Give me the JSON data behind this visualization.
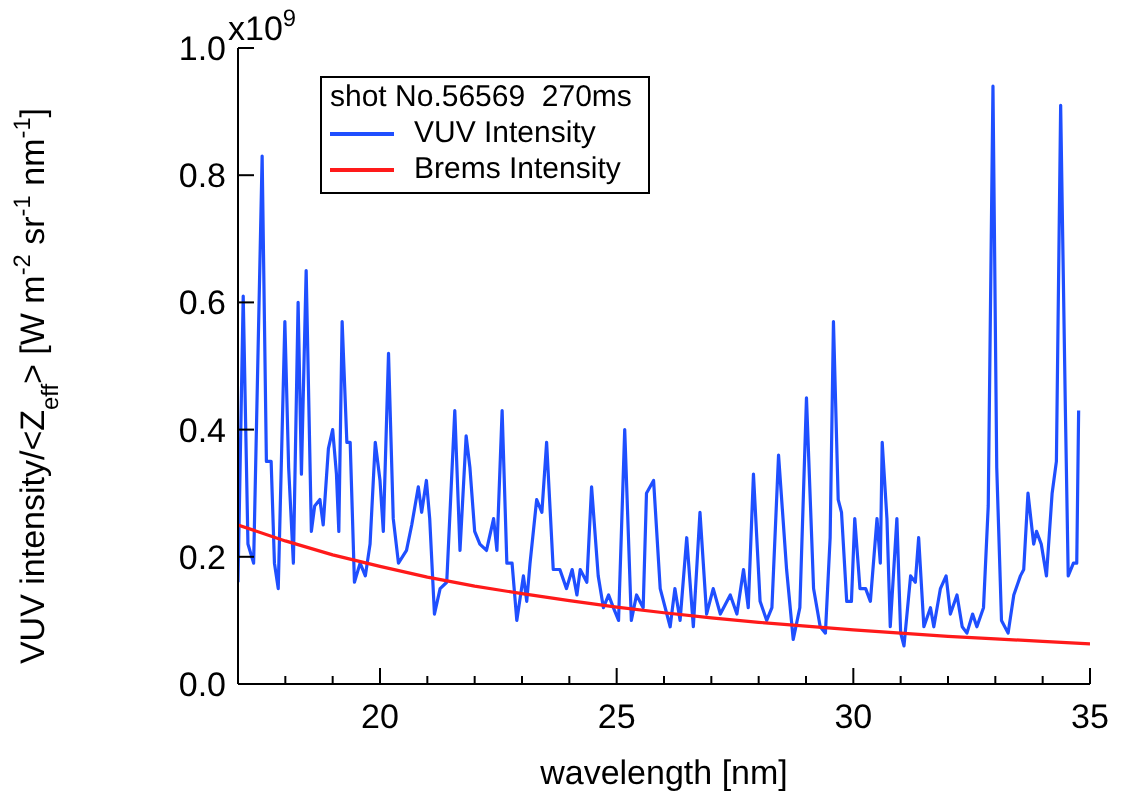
{
  "chart_data": {
    "type": "line",
    "xlabel": "wavelength [nm]",
    "ylabel": "VUV intensity/<Z$_{eff}$> [W m$^{-2}$ sr$^{-1}$ nm$^{-1}$]",
    "legend_title": "shot No.56569  270ms",
    "legend": "top left",
    "line_style": "solid",
    "xlim": [
      17,
      35
    ],
    "xticks": [
      {
        "value": 18,
        "label": null
      },
      {
        "value": 19,
        "label": null
      },
      20,
      {
        "value": 21,
        "label": null
      },
      {
        "value": 22,
        "label": null
      },
      {
        "value": 23,
        "label": null
      },
      {
        "value": 24,
        "label": null
      },
      25,
      {
        "value": 26,
        "label": null
      },
      {
        "value": 27,
        "label": null
      },
      {
        "value": 28,
        "label": null
      },
      {
        "value": 29,
        "label": null
      },
      30,
      {
        "value": 31,
        "label": null
      },
      {
        "value": 32,
        "label": null
      },
      {
        "value": 33,
        "label": null
      },
      {
        "value": 34,
        "label": null
      },
      35
    ],
    "ylim": [
      0,
      1
    ],
    "yticks": [
      {
        "value": 0,
        "label": "0.0"
      },
      0.2,
      0.4,
      0.6,
      0.8,
      {
        "value": 1,
        "label": "1.0"
      }
    ],
    "annotations": [
      "x10$^{9}$"
    ],
    "series": [
      {
        "name": "VUV Intensity",
        "color": "#1f4fff",
        "x": [
          17.0,
          17.11,
          17.21,
          17.33,
          17.51,
          17.6,
          17.7,
          17.77,
          17.85,
          17.99,
          18.07,
          18.17,
          18.27,
          18.34,
          18.44,
          18.55,
          18.62,
          18.73,
          18.8,
          18.91,
          19.0,
          19.08,
          19.13,
          19.2,
          19.3,
          19.37,
          19.46,
          19.58,
          19.69,
          19.79,
          19.9,
          20.0,
          20.07,
          20.18,
          20.28,
          20.39,
          20.56,
          20.67,
          20.81,
          20.88,
          20.98,
          21.05,
          21.15,
          21.27,
          21.41,
          21.58,
          21.69,
          21.82,
          21.9,
          22.0,
          22.11,
          22.25,
          22.4,
          22.47,
          22.58,
          22.68,
          22.79,
          22.89,
          23.03,
          23.1,
          23.17,
          23.31,
          23.42,
          23.52,
          23.66,
          23.8,
          23.94,
          24.06,
          24.16,
          24.23,
          24.37,
          24.47,
          24.61,
          24.72,
          24.83,
          24.93,
          25.04,
          25.17,
          25.31,
          25.42,
          25.56,
          25.63,
          25.78,
          25.92,
          26.13,
          26.23,
          26.34,
          26.48,
          26.62,
          26.76,
          26.9,
          27.04,
          27.19,
          27.4,
          27.54,
          27.68,
          27.78,
          27.89,
          28.03,
          28.17,
          28.28,
          28.42,
          28.59,
          28.73,
          28.87,
          29.01,
          29.16,
          29.3,
          29.41,
          29.51,
          29.58,
          29.68,
          29.75,
          29.86,
          29.96,
          30.03,
          30.14,
          30.26,
          30.36,
          30.5,
          30.57,
          30.61,
          30.71,
          30.78,
          30.92,
          31.0,
          31.07,
          31.21,
          31.31,
          31.38,
          31.49,
          31.63,
          31.7,
          31.84,
          31.96,
          32.05,
          32.19,
          32.3,
          32.4,
          32.52,
          32.61,
          32.75,
          32.85,
          32.95,
          33.03,
          33.13,
          33.27,
          33.39,
          33.53,
          33.6,
          33.69,
          33.81,
          33.87,
          33.97,
          34.08,
          34.2,
          34.29,
          34.38,
          34.48,
          34.54,
          34.65,
          34.72,
          34.76
        ],
        "values": [
          0.16,
          0.61,
          0.22,
          0.19,
          0.83,
          0.35,
          0.35,
          0.19,
          0.15,
          0.57,
          0.34,
          0.19,
          0.6,
          0.33,
          0.65,
          0.24,
          0.28,
          0.29,
          0.25,
          0.37,
          0.4,
          0.33,
          0.24,
          0.57,
          0.38,
          0.38,
          0.16,
          0.19,
          0.17,
          0.22,
          0.38,
          0.32,
          0.24,
          0.52,
          0.26,
          0.19,
          0.21,
          0.25,
          0.31,
          0.27,
          0.32,
          0.26,
          0.11,
          0.15,
          0.16,
          0.43,
          0.21,
          0.39,
          0.34,
          0.24,
          0.22,
          0.21,
          0.26,
          0.21,
          0.43,
          0.19,
          0.19,
          0.1,
          0.17,
          0.13,
          0.19,
          0.29,
          0.27,
          0.38,
          0.18,
          0.18,
          0.15,
          0.18,
          0.14,
          0.18,
          0.16,
          0.31,
          0.17,
          0.12,
          0.14,
          0.12,
          0.1,
          0.4,
          0.1,
          0.14,
          0.12,
          0.3,
          0.32,
          0.15,
          0.09,
          0.15,
          0.1,
          0.23,
          0.09,
          0.27,
          0.11,
          0.15,
          0.11,
          0.14,
          0.11,
          0.18,
          0.12,
          0.33,
          0.13,
          0.1,
          0.12,
          0.36,
          0.18,
          0.07,
          0.12,
          0.45,
          0.15,
          0.09,
          0.08,
          0.23,
          0.57,
          0.29,
          0.27,
          0.13,
          0.13,
          0.26,
          0.15,
          0.15,
          0.13,
          0.26,
          0.19,
          0.38,
          0.26,
          0.09,
          0.26,
          0.08,
          0.06,
          0.17,
          0.16,
          0.23,
          0.09,
          0.12,
          0.09,
          0.15,
          0.17,
          0.11,
          0.14,
          0.09,
          0.08,
          0.11,
          0.09,
          0.12,
          0.28,
          0.94,
          0.34,
          0.1,
          0.08,
          0.14,
          0.17,
          0.18,
          0.3,
          0.22,
          0.24,
          0.22,
          0.17,
          0.3,
          0.35,
          0.91,
          0.43,
          0.17,
          0.19,
          0.19,
          0.43
        ]
      },
      {
        "name": "Brems Intensity",
        "color": "#ff1a1a",
        "x": [
          17,
          18,
          19,
          20,
          21,
          22,
          23,
          24,
          25,
          26,
          27,
          28,
          29,
          30,
          31,
          32,
          33,
          34,
          35
        ],
        "values": [
          0.25,
          0.225,
          0.203,
          0.185,
          0.168,
          0.154,
          0.142,
          0.131,
          0.121,
          0.112,
          0.104,
          0.097,
          0.091,
          0.085,
          0.08,
          0.075,
          0.071,
          0.067,
          0.063
        ]
      }
    ]
  }
}
